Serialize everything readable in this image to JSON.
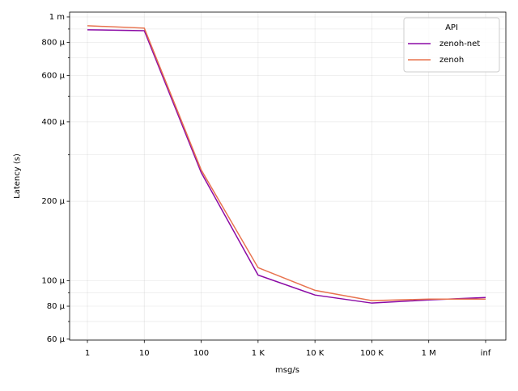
{
  "chart_data": {
    "type": "line",
    "x_label": "msg/s",
    "y_label": "Latency (s)",
    "legend_title": "API",
    "legend_position": "upper right",
    "categories": [
      "1",
      "10",
      "100",
      "1 K",
      "10 K",
      "100 K",
      "1 M",
      "inf"
    ],
    "series": [
      {
        "name": "zenoh-net",
        "color": "#8b0aa5",
        "values": [
          0.000894,
          0.000887,
          0.000257,
          0.000105,
          8.82e-05,
          8.22e-05,
          8.45e-05,
          8.63e-05
        ]
      },
      {
        "name": "zenoh",
        "color": "#e8734f",
        "values": [
          0.000926,
          0.000907,
          0.000263,
          0.000112,
          9.19e-05,
          8.4e-05,
          8.51e-05,
          8.51e-05
        ]
      }
    ],
    "y_log": true,
    "grid": true,
    "ylim": [
      5.95e-05,
      0.001043
    ],
    "yticks": [
      {
        "value": 6e-05,
        "label": "60 µ"
      },
      {
        "value": 8e-05,
        "label": "80 µ"
      },
      {
        "value": 0.0001,
        "label": "100 µ"
      },
      {
        "value": 0.0002,
        "label": "200 µ"
      },
      {
        "value": 0.0004,
        "label": "400 µ"
      },
      {
        "value": 0.0006,
        "label": "600 µ"
      },
      {
        "value": 0.0008,
        "label": "800 µ"
      },
      {
        "value": 0.001,
        "label": "1 m"
      }
    ],
    "yminor_ticks": [
      7e-05,
      9e-05,
      0.0003,
      0.0005,
      0.0007,
      0.0009
    ]
  }
}
